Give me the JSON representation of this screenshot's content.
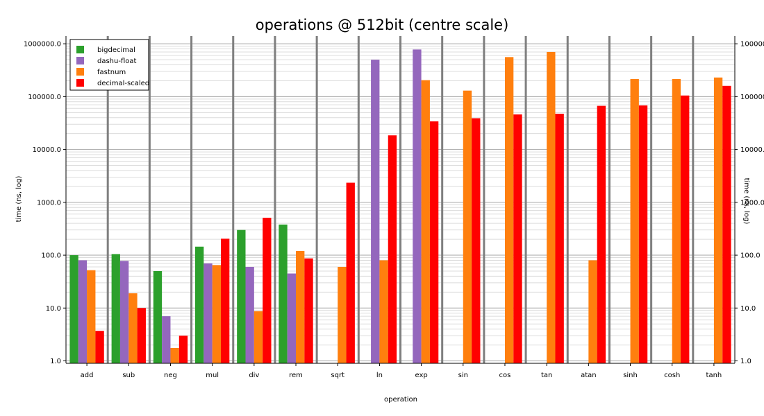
{
  "chart_data": {
    "type": "bar",
    "title": "operations @ 512bit (centre scale)",
    "xlabel": "operation",
    "ylabel": "time (ns, log)",
    "ylabel_right": "time (ns, log)",
    "y_scale": "log",
    "ylim": [
      0.9,
      1400000
    ],
    "yticks": [
      1,
      10,
      100,
      1000,
      10000,
      100000,
      1000000
    ],
    "ytick_labels": [
      "1.0",
      "10.0",
      "100.0",
      "1000.0",
      "10000.0",
      "100000.0",
      "1000000.0"
    ],
    "grid": true,
    "legend_position": "top-left",
    "categories": [
      "add",
      "sub",
      "neg",
      "mul",
      "div",
      "rem",
      "sqrt",
      "ln",
      "exp",
      "sin",
      "cos",
      "tan",
      "atan",
      "sinh",
      "cosh",
      "tanh"
    ],
    "series": [
      {
        "name": "bigdecimal",
        "color": "#2ca02c",
        "values": [
          100,
          105,
          50,
          145,
          300,
          380,
          null,
          null,
          null,
          null,
          null,
          null,
          null,
          null,
          null,
          null
        ]
      },
      {
        "name": "dashu-float",
        "color": "#9467bd",
        "values": [
          80,
          78,
          7,
          70,
          60,
          45,
          null,
          500000,
          780000,
          null,
          null,
          null,
          null,
          null,
          null,
          null
        ]
      },
      {
        "name": "fastnum",
        "color": "#ff7f0e",
        "values": [
          52,
          19,
          1.75,
          65,
          8.7,
          120,
          60,
          80,
          205000,
          130000,
          560000,
          700000,
          80,
          215000,
          215000,
          230000
        ]
      },
      {
        "name": "decimal-scaled",
        "color": "#ff0000",
        "values": [
          3.7,
          10,
          3,
          205,
          510,
          87,
          2350,
          18500,
          34000,
          39000,
          46000,
          47500,
          67000,
          68000,
          105000,
          160000
        ]
      }
    ]
  }
}
